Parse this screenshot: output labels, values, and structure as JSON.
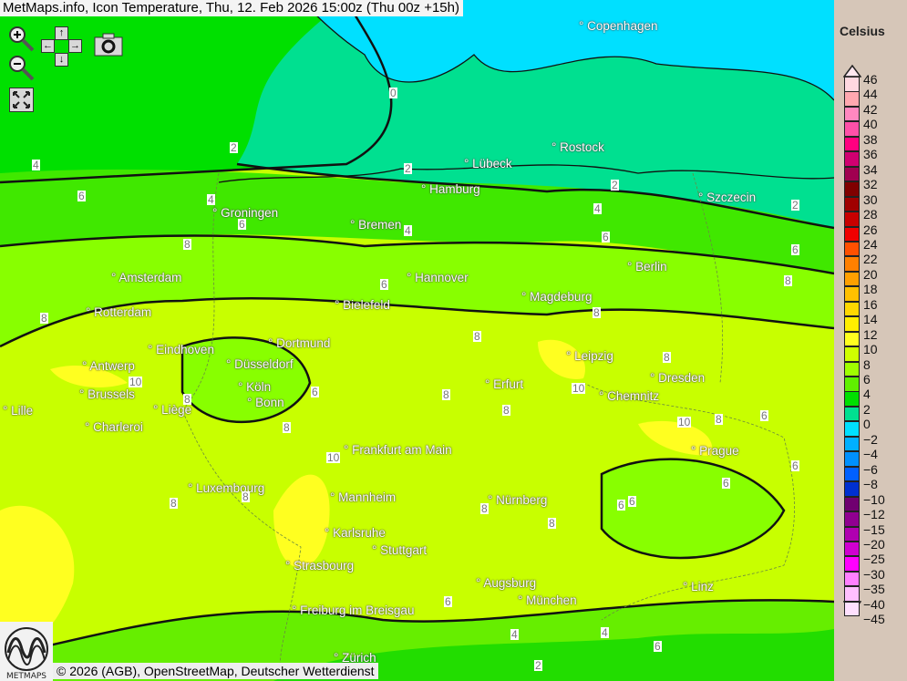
{
  "title": "MetMaps.info, Icon Temperature, Thu, 12. Feb 2026 15:00z (Thu 00z +15h)",
  "copyright": "© 2026 (AGB), OpenStreetMap, Deutscher Wetterdienst",
  "logo_text": "METMAPS",
  "controls": {
    "zoom_in": "zoom-in-icon",
    "zoom_out": "zoom-out-icon",
    "pan_up": "↑",
    "pan_down": "↓",
    "pan_left": "←",
    "pan_right": "→",
    "screenshot": "camera-icon",
    "fullscreen": "fullscreen-icon"
  },
  "legend": {
    "unit": "Celsius",
    "labels": [
      "46",
      "44",
      "42",
      "40",
      "38",
      "36",
      "34",
      "32",
      "30",
      "28",
      "26",
      "24",
      "22",
      "20",
      "18",
      "16",
      "14",
      "12",
      "10",
      "8",
      "6",
      "4",
      "2",
      "0",
      "−2",
      "−4",
      "−6",
      "−8",
      "−10",
      "−12",
      "−15",
      "−20",
      "−25",
      "−30",
      "−35",
      "−40",
      "−45"
    ],
    "colors": [
      "#ffd8e0",
      "#ffa8b0",
      "#ff88c0",
      "#ff50a8",
      "#ff0080",
      "#d00070",
      "#a00050",
      "#800000",
      "#a00000",
      "#c80000",
      "#f00000",
      "#ff5000",
      "#ff8000",
      "#ffa000",
      "#ffc000",
      "#ffd800",
      "#ffee00",
      "#ffff20",
      "#d0ff00",
      "#a0ff00",
      "#60f000",
      "#00e000",
      "#00e090",
      "#00e0ff",
      "#00b0ff",
      "#0090ff",
      "#0060ff",
      "#0030d0",
      "#700070",
      "#900090",
      "#b000b0",
      "#d000d0",
      "#ff00ff",
      "#ff80ff",
      "#ffc0ff",
      "#ffe0ff"
    ]
  },
  "cities": [
    "Copenhagen",
    "Rostock",
    "Lübeck",
    "Hamburg",
    "Szczecin",
    "Groningen",
    "Bremen",
    "Berlin",
    "Amsterdam",
    "Hannover",
    "Bielefeld",
    "Magdeburg",
    "Rotterdam",
    "Dortmund",
    "Eindhoven",
    "Leipzig",
    "Antwerp",
    "Düsseldorf",
    "Dresden",
    "Brussels",
    "Köln",
    "Erfurt",
    "Lille",
    "Bonn",
    "Liège",
    "Chemnitz",
    "Charleroi",
    "Frankfurt am Main",
    "Prague",
    "Luxembourg",
    "Mannheim",
    "Nürnberg",
    "Karlsruhe",
    "Stuttgart",
    "Strasbourg",
    "Augsburg",
    "Linz",
    "München",
    "Freiburg im Breisgau",
    "Zürich"
  ],
  "isotherm_labels": [
    "0",
    "2",
    "2",
    "2",
    "4",
    "4",
    "6",
    "4",
    "2",
    "4",
    "6",
    "6",
    "8",
    "6",
    "8",
    "8",
    "10",
    "8",
    "6",
    "8",
    "10",
    "8",
    "8",
    "8",
    "10",
    "8",
    "6",
    "8",
    "8",
    "6",
    "8",
    "8",
    "6",
    "6",
    "8",
    "10",
    "8",
    "6",
    "6",
    "4",
    "4",
    "6",
    "6",
    "2"
  ]
}
